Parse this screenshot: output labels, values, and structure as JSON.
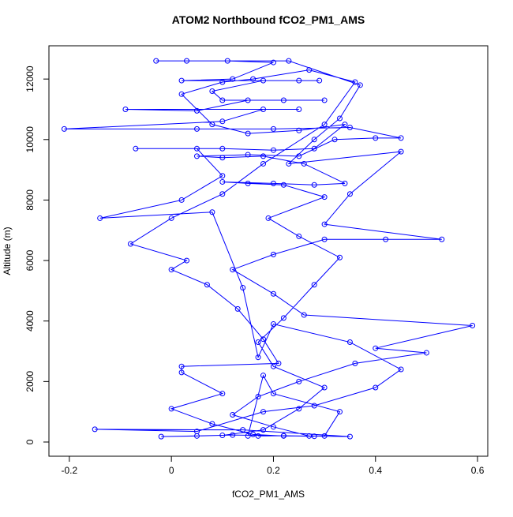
{
  "chart_data": {
    "type": "line",
    "title": "ATOM2 Northbound fCO2_PM1_AMS",
    "x_label": "fCO2_PM1_AMS",
    "y_label": "Altitude (m)",
    "x": [
      0.17,
      0.22,
      0.28,
      0.12,
      0.05,
      -0.02,
      0.1,
      0.18,
      0.25,
      0.3,
      0.2,
      0.17,
      0.22,
      0.28,
      0.33,
      0.25,
      0.19,
      0.3,
      0.22,
      0.15,
      0.1,
      0.2,
      0.28,
      0.34,
      0.26,
      0.18,
      0.1,
      0.05,
      0.15,
      0.25,
      0.32,
      0.4,
      0.45,
      0.35,
      0.2,
      0.05,
      -0.21,
      0.1,
      0.18,
      0.25,
      -0.09,
      0.05,
      0.15,
      0.22,
      0.3,
      0.1,
      0.08,
      0.18,
      0.25,
      0.29,
      0.02,
      0.12,
      0.2,
      0.11,
      -0.03,
      0.03,
      0.23,
      0.37,
      0.33,
      0.28,
      0.23,
      0.45,
      0.35,
      0.3,
      0.53,
      0.42,
      0.3,
      0.2,
      0.12,
      0.2,
      0.26,
      0.59,
      0.4,
      0.5,
      0.36,
      0.25,
      0.17,
      0.12,
      0.2,
      0.27,
      0.35,
      0.14,
      -0.15,
      0.05,
      0.18,
      0.28,
      0.4,
      0.45,
      0.35,
      0.2,
      0.17,
      0.14,
      0.08,
      -0.14,
      0.02,
      0.1,
      0.05,
      -0.07,
      0.1,
      0.2,
      0.28,
      0.34,
      0.25,
      0.15,
      0.08,
      0.02,
      0.1,
      0.16,
      0.27,
      0.36,
      0.3,
      0.18,
      0.1,
      0.0,
      -0.08,
      0.03,
      0.0,
      0.07,
      0.13,
      0.18,
      0.21,
      0.02,
      0.02,
      0.1,
      0.0,
      0.08,
      0.16,
      0.22,
      0.3,
      0.33,
      0.2,
      0.18,
      0.15
    ],
    "series": [
      {
        "color": "#0000ff",
        "values": [
          200,
          210,
          190,
          230,
          200,
          180,
          220,
          400,
          1100,
          1800,
          2500,
          3300,
          4100,
          5200,
          6100,
          6800,
          7400,
          8100,
          8500,
          8550,
          8600,
          8550,
          8500,
          8550,
          9200,
          9450,
          9400,
          9450,
          9500,
          9450,
          10000,
          10050,
          10050,
          10400,
          10350,
          10350,
          10350,
          10600,
          11000,
          11000,
          11000,
          10950,
          11300,
          11300,
          11300,
          11300,
          11600,
          11950,
          11950,
          11950,
          11950,
          12000,
          12550,
          12600,
          12600,
          12600,
          12600,
          11800,
          10700,
          10000,
          9200,
          9600,
          8200,
          7200,
          6700,
          6700,
          6700,
          6200,
          5700,
          4900,
          4200,
          3850,
          3100,
          2950,
          2600,
          2000,
          1500,
          900,
          500,
          200,
          180,
          400,
          420,
          350,
          1000,
          1200,
          1800,
          2400,
          3300,
          3900,
          2800,
          5100,
          7600,
          7400,
          8000,
          8800,
          9700,
          9700,
          9700,
          9650,
          9700,
          10500,
          10300,
          10200,
          10500,
          11500,
          11900,
          12000,
          12300,
          11900,
          10500,
          9200,
          8200,
          7400,
          6550,
          6000,
          5700,
          5200,
          4400,
          3400,
          2600,
          2500,
          2300,
          1600,
          1100,
          600,
          250,
          200,
          200,
          1000,
          1600,
          2200,
          200
        ]
      }
    ],
    "xlim": [
      -0.24,
      0.62
    ],
    "ylim": [
      -470,
      13100
    ],
    "xticks": [
      -0.2,
      0.0,
      0.2,
      0.4,
      0.6
    ],
    "yticks": [
      0,
      2000,
      4000,
      6000,
      8000,
      10000,
      12000
    ]
  }
}
